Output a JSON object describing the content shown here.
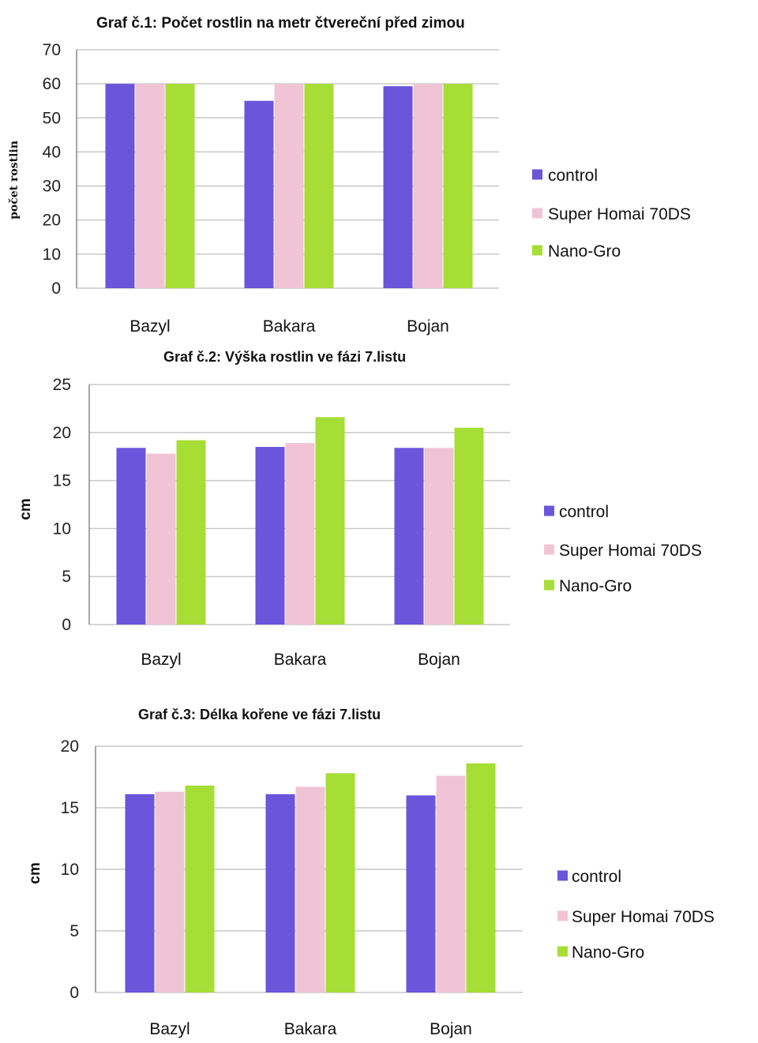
{
  "series_colors": {
    "control": "#6a55db",
    "Super Homai 70DS": "#f0c4d4",
    "Nano-Gro": "#a6de36"
  },
  "chart_data": [
    {
      "type": "bar",
      "title": "Graf č.1: Počet rostlin na metr čtvereční před zimou",
      "ylabel": "počet rostlin",
      "xlabel": "",
      "categories": [
        "Bazyl",
        "Bakara",
        "Bojan"
      ],
      "ylim": [
        0,
        70
      ],
      "yticks": [
        0,
        10,
        20,
        30,
        40,
        50,
        60,
        70
      ],
      "grid": true,
      "legend_position": "right",
      "series": [
        {
          "name": "control",
          "values": [
            60,
            55,
            59.3
          ]
        },
        {
          "name": "Super Homai 70DS",
          "values": [
            60,
            60,
            60
          ]
        },
        {
          "name": "Nano-Gro",
          "values": [
            60,
            60,
            60
          ]
        }
      ]
    },
    {
      "type": "bar",
      "title": "Graf č.2: Výška rostlin ve fázi 7.listu",
      "ylabel": "cm",
      "xlabel": "",
      "categories": [
        "Bazyl",
        "Bakara",
        "Bojan"
      ],
      "ylim": [
        0,
        25
      ],
      "yticks": [
        0,
        5,
        10,
        15,
        20,
        25
      ],
      "grid": true,
      "legend_position": "right",
      "series": [
        {
          "name": "control",
          "values": [
            18.4,
            18.5,
            18.4
          ]
        },
        {
          "name": "Super Homai 70DS",
          "values": [
            17.8,
            18.9,
            18.4
          ]
        },
        {
          "name": "Nano-Gro",
          "values": [
            19.2,
            21.6,
            20.5
          ]
        }
      ]
    },
    {
      "type": "bar",
      "title": "Graf č.3: Délka kořene ve fázi 7.listu",
      "ylabel": "cm",
      "xlabel": "",
      "categories": [
        "Bazyl",
        "Bakara",
        "Bojan"
      ],
      "ylim": [
        0,
        20
      ],
      "yticks": [
        0,
        5,
        10,
        15,
        20
      ],
      "grid": true,
      "legend_position": "right",
      "series": [
        {
          "name": "control",
          "values": [
            16.1,
            16.1,
            16.0
          ]
        },
        {
          "name": "Super Homai 70DS",
          "values": [
            16.3,
            16.7,
            17.6
          ]
        },
        {
          "name": "Nano-Gro",
          "values": [
            16.8,
            17.8,
            18.6
          ]
        }
      ]
    }
  ]
}
